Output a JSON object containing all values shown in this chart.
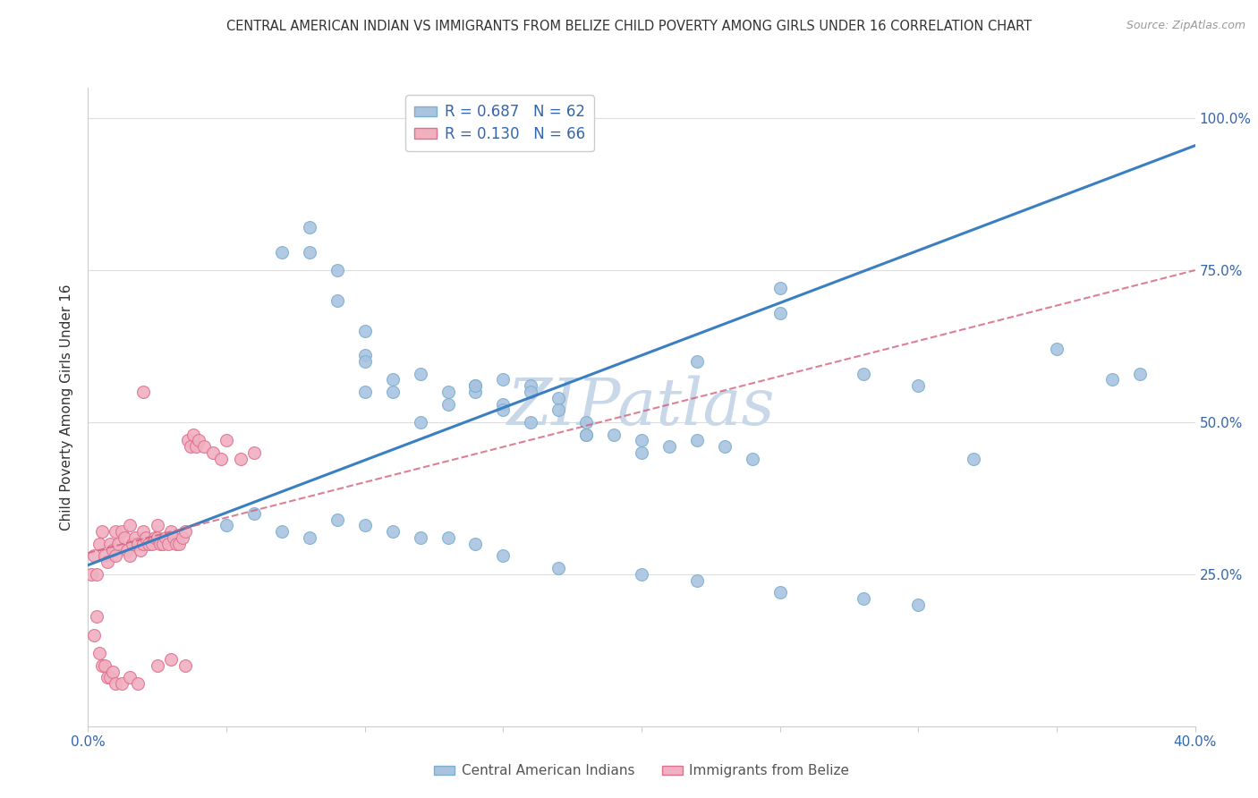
{
  "title": "CENTRAL AMERICAN INDIAN VS IMMIGRANTS FROM BELIZE CHILD POVERTY AMONG GIRLS UNDER 16 CORRELATION CHART",
  "source": "Source: ZipAtlas.com",
  "ylabel": "Child Poverty Among Girls Under 16",
  "xmin": 0.0,
  "xmax": 0.4,
  "ymin": 0.0,
  "ymax": 1.05,
  "grid_color": "#dddddd",
  "watermark": "ZIPatlas",
  "watermark_color": "#c8d8e8",
  "legend_r1": "R = 0.687",
  "legend_n1": "N = 62",
  "legend_r2": "R = 0.130",
  "legend_n2": "N = 66",
  "series1_color": "#aac4e0",
  "series1_edge": "#7aafd0",
  "series2_color": "#f0b0c0",
  "series2_edge": "#e07090",
  "line1_color": "#3a7fc1",
  "line2_color": "#d4607a",
  "blue_scatter_x": [
    0.1,
    0.14,
    0.14,
    0.15,
    0.15,
    0.16,
    0.16,
    0.17,
    0.17,
    0.18,
    0.18,
    0.19,
    0.2,
    0.2,
    0.21,
    0.22,
    0.23,
    0.24,
    0.25,
    0.1,
    0.11,
    0.12,
    0.13,
    0.13,
    0.14,
    0.15,
    0.16,
    0.18,
    0.07,
    0.08,
    0.08,
    0.09,
    0.09,
    0.1,
    0.1,
    0.11,
    0.12,
    0.05,
    0.06,
    0.07,
    0.08,
    0.09,
    0.1,
    0.11,
    0.12,
    0.13,
    0.14,
    0.15,
    0.17,
    0.2,
    0.22,
    0.25,
    0.28,
    0.3,
    0.32,
    0.35,
    0.37,
    0.38,
    0.3,
    0.28,
    0.25,
    0.22
  ],
  "blue_scatter_y": [
    0.55,
    0.56,
    0.55,
    0.57,
    0.53,
    0.56,
    0.55,
    0.54,
    0.52,
    0.5,
    0.48,
    0.48,
    0.47,
    0.45,
    0.46,
    0.47,
    0.46,
    0.44,
    0.68,
    0.61,
    0.57,
    0.58,
    0.55,
    0.53,
    0.56,
    0.52,
    0.5,
    0.48,
    0.78,
    0.82,
    0.78,
    0.75,
    0.7,
    0.65,
    0.6,
    0.55,
    0.5,
    0.33,
    0.35,
    0.32,
    0.31,
    0.34,
    0.33,
    0.32,
    0.31,
    0.31,
    0.3,
    0.28,
    0.26,
    0.25,
    0.24,
    0.22,
    0.21,
    0.2,
    0.44,
    0.62,
    0.57,
    0.58,
    0.56,
    0.58,
    0.72,
    0.6
  ],
  "pink_scatter_x": [
    0.001,
    0.002,
    0.003,
    0.004,
    0.005,
    0.006,
    0.007,
    0.008,
    0.009,
    0.01,
    0.01,
    0.011,
    0.012,
    0.013,
    0.014,
    0.015,
    0.015,
    0.016,
    0.017,
    0.018,
    0.019,
    0.02,
    0.02,
    0.021,
    0.022,
    0.023,
    0.024,
    0.025,
    0.025,
    0.026,
    0.027,
    0.028,
    0.029,
    0.03,
    0.031,
    0.032,
    0.033,
    0.034,
    0.035,
    0.036,
    0.037,
    0.038,
    0.039,
    0.04,
    0.042,
    0.045,
    0.048,
    0.05,
    0.055,
    0.06,
    0.002,
    0.003,
    0.004,
    0.005,
    0.006,
    0.007,
    0.008,
    0.009,
    0.01,
    0.012,
    0.015,
    0.018,
    0.02,
    0.025,
    0.03,
    0.035
  ],
  "pink_scatter_y": [
    0.25,
    0.28,
    0.25,
    0.3,
    0.32,
    0.28,
    0.27,
    0.3,
    0.29,
    0.32,
    0.28,
    0.3,
    0.32,
    0.31,
    0.29,
    0.33,
    0.28,
    0.3,
    0.31,
    0.3,
    0.29,
    0.32,
    0.3,
    0.31,
    0.3,
    0.3,
    0.31,
    0.33,
    0.31,
    0.3,
    0.3,
    0.31,
    0.3,
    0.32,
    0.31,
    0.3,
    0.3,
    0.31,
    0.32,
    0.47,
    0.46,
    0.48,
    0.46,
    0.47,
    0.46,
    0.45,
    0.44,
    0.47,
    0.44,
    0.45,
    0.15,
    0.18,
    0.12,
    0.1,
    0.1,
    0.08,
    0.08,
    0.09,
    0.07,
    0.07,
    0.08,
    0.07,
    0.55,
    0.1,
    0.11,
    0.1
  ],
  "blue_line_x": [
    0.0,
    0.4
  ],
  "blue_line_y": [
    0.265,
    0.955
  ],
  "pink_line_x": [
    0.0,
    0.4
  ],
  "pink_line_y": [
    0.285,
    0.75
  ],
  "background_color": "#ffffff",
  "fig_width": 14.06,
  "fig_height": 8.92
}
